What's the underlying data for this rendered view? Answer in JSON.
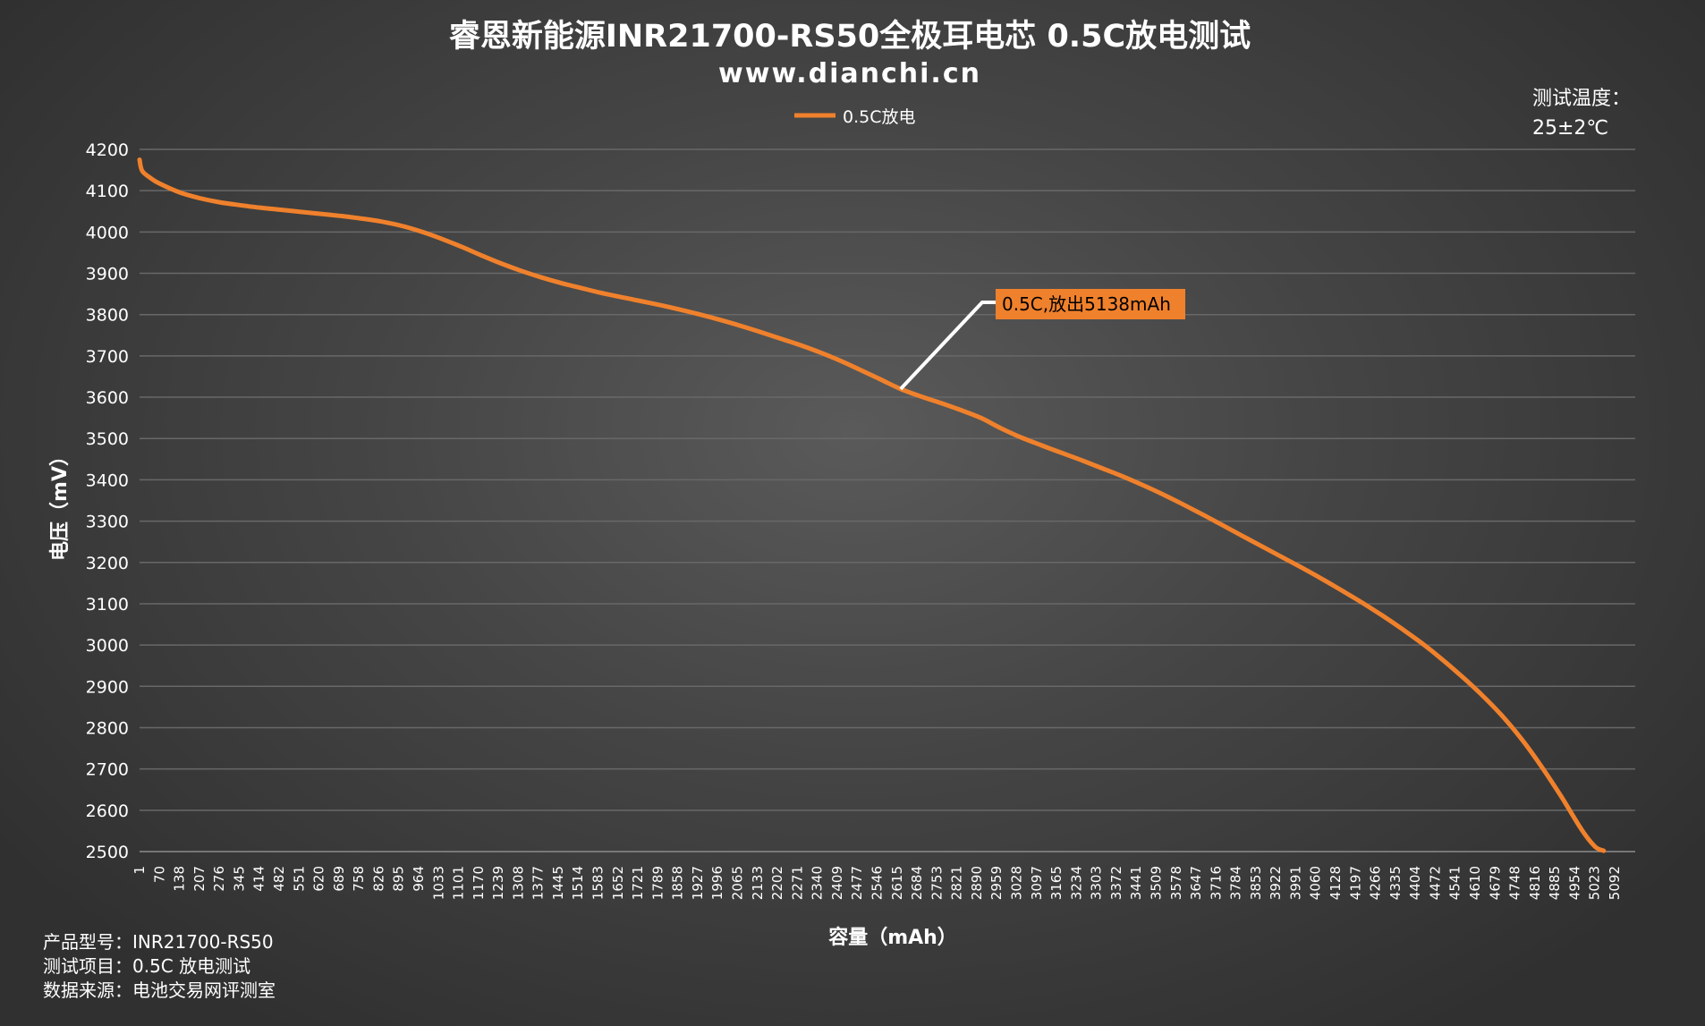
{
  "chart_data": {
    "type": "line",
    "title": "睿恩新能源INR21700-RS50全极耳电芯 0.5C放电测试",
    "subtitle": "www.dianchi.cn",
    "xlabel": "容量（mAh）",
    "ylabel": "电压（mV）",
    "ylim": [
      2500,
      4200
    ],
    "yticks": [
      2500,
      2600,
      2700,
      2800,
      2900,
      3000,
      3100,
      3200,
      3300,
      3400,
      3500,
      3600,
      3700,
      3800,
      3900,
      4000,
      4100,
      4200
    ],
    "xlim": [
      1,
      5138
    ],
    "x_tick_labels": [
      "1",
      "70",
      "138",
      "207",
      "276",
      "345",
      "414",
      "482",
      "551",
      "620",
      "689",
      "758",
      "826",
      "895",
      "964",
      "1033",
      "1101",
      "1170",
      "1239",
      "1308",
      "1377",
      "1445",
      "1514",
      "1583",
      "1652",
      "1721",
      "1789",
      "1858",
      "1927",
      "1996",
      "2065",
      "2133",
      "2202",
      "2271",
      "2340",
      "2409",
      "2477",
      "2546",
      "2615",
      "2684",
      "2753",
      "2821",
      "2890",
      "2959",
      "3028",
      "3097",
      "3165",
      "3234",
      "3303",
      "3372",
      "3441",
      "3509",
      "3578",
      "3647",
      "3716",
      "3784",
      "3853",
      "3922",
      "3991",
      "4060",
      "4128",
      "4197",
      "4266",
      "4335",
      "4404",
      "4472",
      "4541",
      "4610",
      "4679",
      "4748",
      "4816",
      "4885",
      "4954",
      "5023",
      "5092"
    ],
    "grid": true,
    "legend_position": "top-center",
    "series": [
      {
        "name": "0.5C放电",
        "color": "#f0812c",
        "points": [
          [
            1,
            4175
          ],
          [
            10,
            4148
          ],
          [
            40,
            4130
          ],
          [
            70,
            4117
          ],
          [
            138,
            4096
          ],
          [
            207,
            4082
          ],
          [
            276,
            4072
          ],
          [
            345,
            4065
          ],
          [
            414,
            4059
          ],
          [
            482,
            4054
          ],
          [
            551,
            4049
          ],
          [
            620,
            4044
          ],
          [
            689,
            4039
          ],
          [
            758,
            4033
          ],
          [
            826,
            4026
          ],
          [
            895,
            4016
          ],
          [
            964,
            4002
          ],
          [
            1033,
            3985
          ],
          [
            1101,
            3966
          ],
          [
            1170,
            3945
          ],
          [
            1239,
            3925
          ],
          [
            1308,
            3907
          ],
          [
            1377,
            3891
          ],
          [
            1445,
            3877
          ],
          [
            1514,
            3865
          ],
          [
            1583,
            3853
          ],
          [
            1652,
            3843
          ],
          [
            1721,
            3833
          ],
          [
            1789,
            3823
          ],
          [
            1858,
            3812
          ],
          [
            1927,
            3800
          ],
          [
            1996,
            3787
          ],
          [
            2065,
            3773
          ],
          [
            2133,
            3758
          ],
          [
            2202,
            3742
          ],
          [
            2271,
            3726
          ],
          [
            2340,
            3708
          ],
          [
            2409,
            3688
          ],
          [
            2477,
            3666
          ],
          [
            2546,
            3643
          ],
          [
            2615,
            3620
          ],
          [
            2684,
            3602
          ],
          [
            2753,
            3586
          ],
          [
            2821,
            3569
          ],
          [
            2890,
            3550
          ],
          [
            2959,
            3525
          ],
          [
            3028,
            3503
          ],
          [
            3097,
            3484
          ],
          [
            3165,
            3466
          ],
          [
            3234,
            3448
          ],
          [
            3303,
            3429
          ],
          [
            3372,
            3410
          ],
          [
            3441,
            3389
          ],
          [
            3509,
            3367
          ],
          [
            3578,
            3343
          ],
          [
            3647,
            3318
          ],
          [
            3716,
            3292
          ],
          [
            3784,
            3266
          ],
          [
            3853,
            3240
          ],
          [
            3922,
            3214
          ],
          [
            3991,
            3188
          ],
          [
            4060,
            3161
          ],
          [
            4128,
            3133
          ],
          [
            4197,
            3104
          ],
          [
            4266,
            3073
          ],
          [
            4335,
            3040
          ],
          [
            4404,
            3005
          ],
          [
            4472,
            2967
          ],
          [
            4541,
            2925
          ],
          [
            4610,
            2880
          ],
          [
            4679,
            2830
          ],
          [
            4748,
            2772
          ],
          [
            4816,
            2706
          ],
          [
            4885,
            2632
          ],
          [
            4954,
            2553
          ],
          [
            5000,
            2512
          ],
          [
            5030,
            2502
          ]
        ]
      }
    ],
    "annotation": {
      "text": "0.5C,放出5138mAh",
      "x": 2615,
      "y": 3620,
      "box_color": "#f0812c",
      "text_color": "#000000",
      "leader_color": "#ffffff"
    }
  },
  "side_note": {
    "line1": "测试温度：",
    "line2": "25±2℃"
  },
  "footer": {
    "model": "产品型号：INR21700-RS50",
    "item": "测试项目：0.5C 放电测试",
    "source": "数据来源：电池交易网评测室"
  }
}
